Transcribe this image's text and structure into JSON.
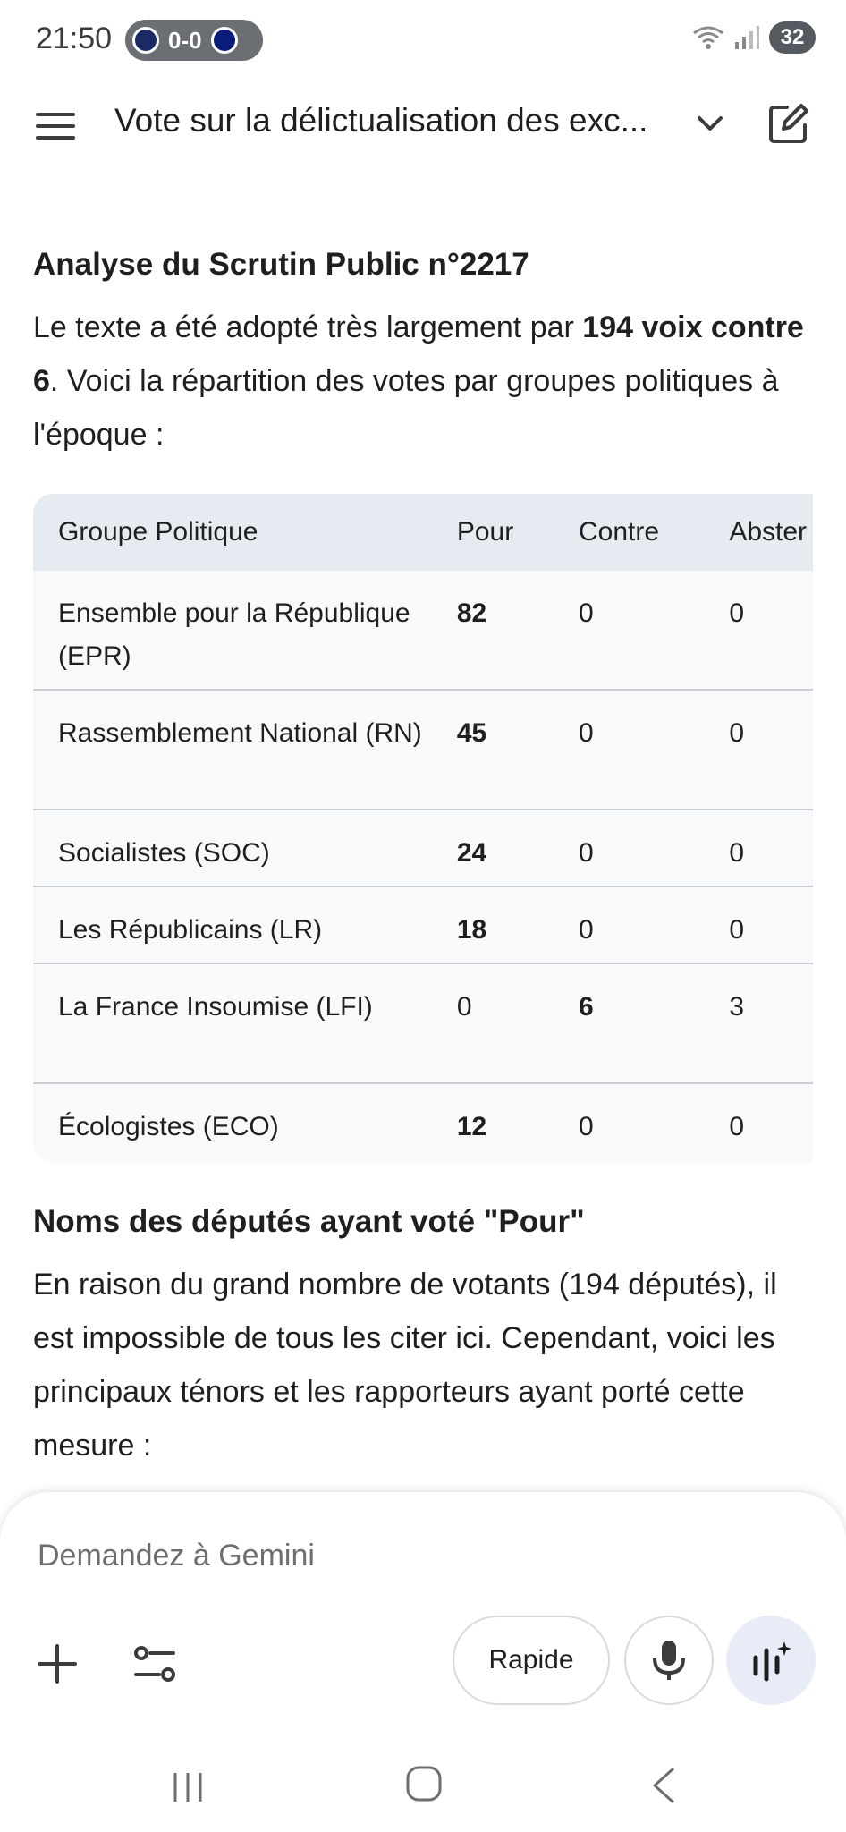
{
  "status_bar": {
    "time": "21:50",
    "score": "0-0",
    "battery": "32"
  },
  "app_bar": {
    "title": "Vote sur la délictualisation des exc..."
  },
  "content": {
    "heading": "Analyse du Scrutin Public n°2217",
    "intro_pre": "Le texte a été adopté très largement par ",
    "intro_bold": "194 voix contre 6",
    "intro_post": ". Voici la répartition des votes par groupes politiques à l'époque :",
    "table": {
      "headers": [
        "Groupe Politique",
        "Pour",
        "Contre",
        "Abster"
      ],
      "rows": [
        {
          "group": "Ensemble pour la République (EPR)",
          "pour": "82",
          "contre": "0",
          "abst": "0"
        },
        {
          "group": "Rassemblement National (RN)",
          "pour": "45",
          "contre": "0",
          "abst": "0"
        },
        {
          "group": "Socialistes (SOC)",
          "pour": "24",
          "contre": "0",
          "abst": "0"
        },
        {
          "group": "Les Républicains (LR)",
          "pour": "18",
          "contre": "0",
          "abst": "0"
        },
        {
          "group": "La France Insoumise (LFI)",
          "pour": "0",
          "contre": "6",
          "abst": "3"
        },
        {
          "group": "Écologistes (ECO)",
          "pour": "12",
          "contre": "0",
          "abst": "0"
        }
      ]
    },
    "heading2": "Noms des députés ayant voté \"Pour\"",
    "paragraph2": "En raison du grand nombre de votants (194 députés), il est impossible de tous les citer ici. Cependant, voici les principaux ténors et les rapporteurs ayant porté cette mesure :"
  },
  "input": {
    "placeholder": "Demandez à Gemini",
    "mode_label": "Rapide"
  },
  "icons": [
    "menu-icon",
    "chevron-down-icon",
    "edit-icon",
    "plus-icon",
    "tools-icon",
    "mic-icon",
    "live-icon",
    "wifi-icon",
    "signal-icon"
  ],
  "colors": {
    "table_header": "#e6eaf1",
    "table_body": "#f8f9fa",
    "live_button": "#e7ecf6"
  }
}
